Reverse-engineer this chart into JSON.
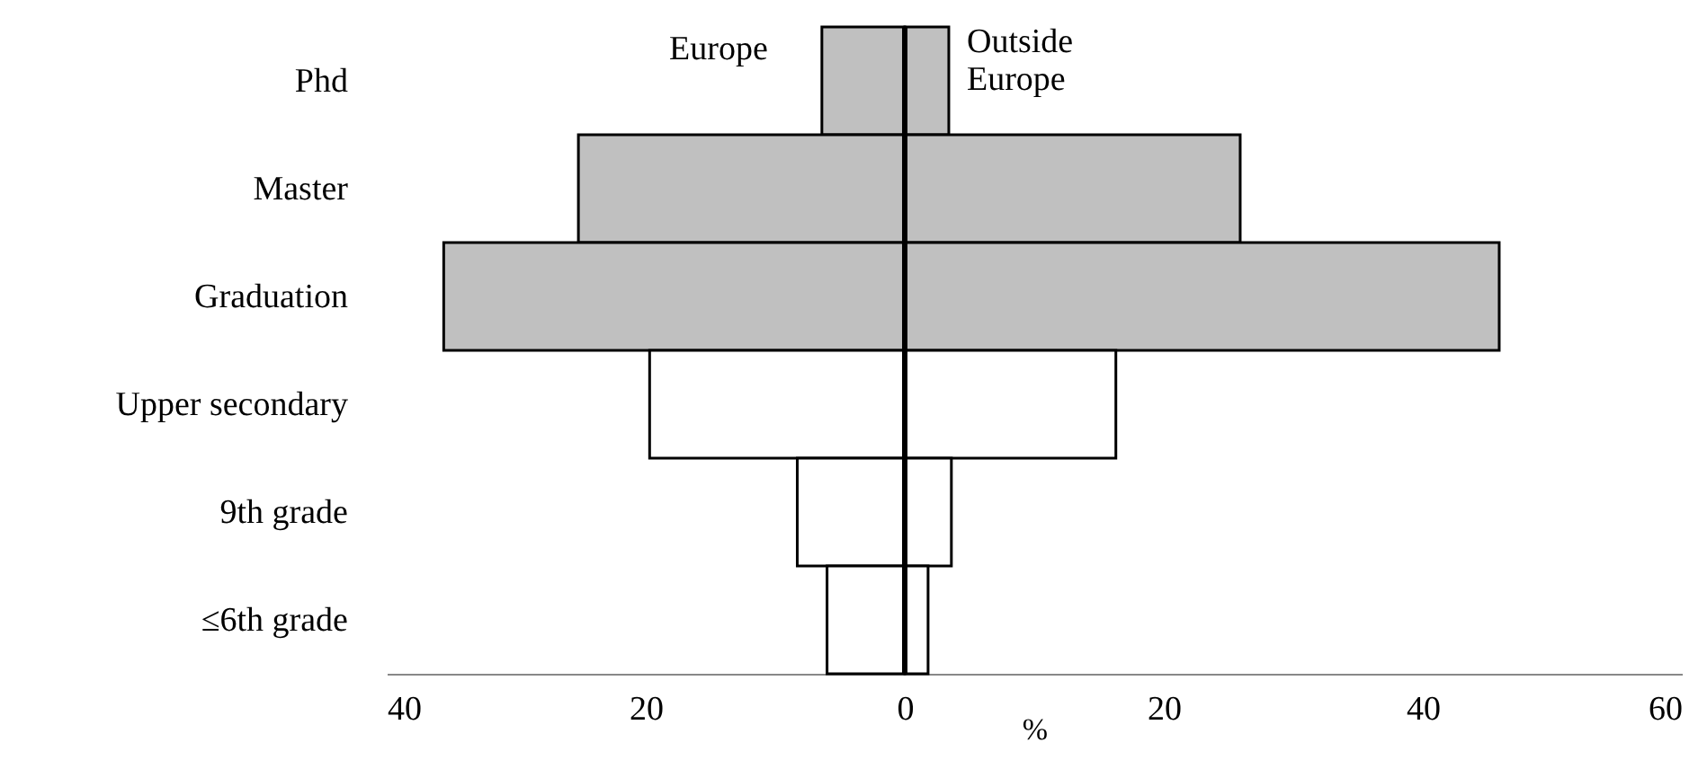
{
  "chart_data": {
    "type": "bar",
    "orientation": "horizontal",
    "stacked": true,
    "xlabel": "%",
    "categories": [
      "Phd",
      "Master",
      "Graduation",
      "Upper secondary",
      "9th grade",
      "≤6th grade"
    ],
    "series": [
      {
        "name": "Europe",
        "colors": [
          "#c0c0c0",
          "#c0c0c0",
          "#c0c0c0",
          "#ffffff",
          "#ffffff",
          "#ffffff"
        ],
        "values": [
          -6.4,
          -25.2,
          -35.6,
          -19.7,
          -8.3,
          -6.0
        ]
      },
      {
        "name": "Outside Europe",
        "colors": [
          "#c0c0c0",
          "#c0c0c0",
          "#c0c0c0",
          "#ffffff",
          "#ffffff",
          "#ffffff"
        ],
        "values": [
          3.4,
          25.9,
          45.9,
          16.3,
          3.6,
          1.8
        ]
      }
    ],
    "xlim": [
      -40,
      60
    ],
    "xticks": [
      {
        "value": -40,
        "label": "40"
      },
      {
        "value": -20,
        "label": "20"
      },
      0,
      20,
      40,
      60
    ],
    "ref_lines": [
      {
        "axis": "x",
        "value": 0,
        "color": "#000000"
      }
    ],
    "grid": false
  }
}
